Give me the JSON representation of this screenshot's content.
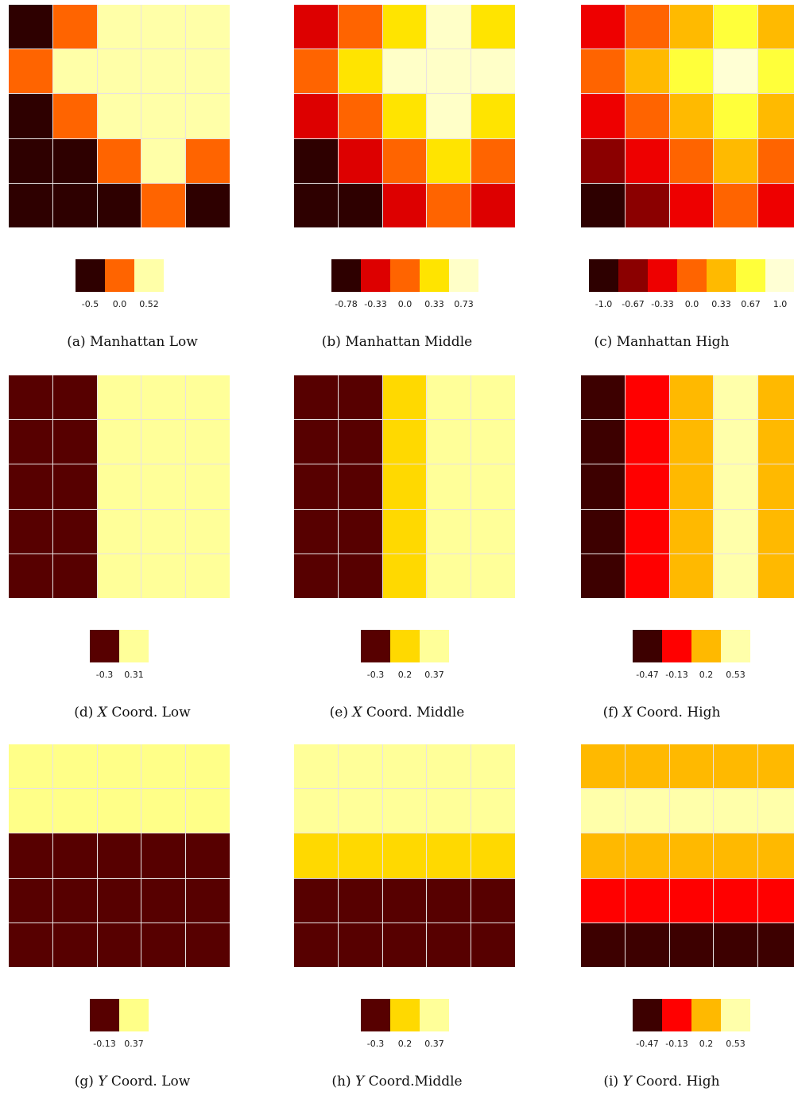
{
  "palette": {
    "dark_brown": "#2e0000",
    "maroon": "#570000",
    "dark_red": "#8b0000",
    "red": "#dd0000",
    "bright_red": "#ff0000",
    "orange": "#ff6400",
    "amber": "#ffba00",
    "gold": "#ffd900",
    "yellow": "#ffe400",
    "bright_yellow": "#ffff3a",
    "light_yellow": "#ffff99",
    "pale_yellow": "#ffffc8"
  },
  "chart_data": [
    {
      "type": "heatmap",
      "caption": {
        "prefix": "(a) ",
        "variable": "",
        "suffix": "Manhattan Low"
      },
      "legend": {
        "values": [
          "-0.5",
          "0.0",
          "0.52"
        ],
        "colors": [
          "#2e0000",
          "#ff6400",
          "#ffffa8"
        ]
      },
      "cells": [
        [
          0,
          1,
          2,
          2,
          2
        ],
        [
          1,
          2,
          2,
          2,
          2
        ],
        [
          0,
          1,
          2,
          2,
          2
        ],
        [
          0,
          0,
          1,
          2,
          1
        ],
        [
          0,
          0,
          0,
          1,
          0
        ]
      ]
    },
    {
      "type": "heatmap",
      "caption": {
        "prefix": "(b) ",
        "variable": "",
        "suffix": "Manhattan Middle"
      },
      "legend": {
        "values": [
          "-0.78",
          "-0.33",
          "0.0",
          "0.33",
          "0.73"
        ],
        "colors": [
          "#2e0000",
          "#dd0000",
          "#ff6400",
          "#ffe400",
          "#ffffc8"
        ]
      },
      "cells": [
        [
          1,
          2,
          3,
          4,
          3
        ],
        [
          2,
          3,
          4,
          4,
          4
        ],
        [
          1,
          2,
          3,
          4,
          3
        ],
        [
          0,
          1,
          2,
          3,
          2
        ],
        [
          0,
          0,
          1,
          2,
          1
        ]
      ]
    },
    {
      "type": "heatmap",
      "caption": {
        "prefix": "(c) ",
        "variable": "",
        "suffix": "Manhattan High"
      },
      "legend": {
        "values": [
          "-1.0",
          "-0.67",
          "-0.33",
          "0.0",
          "0.33",
          "0.67",
          "1.0"
        ],
        "colors": [
          "#2e0000",
          "#8b0000",
          "#ee0000",
          "#ff6400",
          "#ffba00",
          "#ffff3a",
          "#ffffd4"
        ]
      },
      "cells": [
        [
          2,
          3,
          4,
          5,
          4
        ],
        [
          3,
          4,
          5,
          6,
          5
        ],
        [
          2,
          3,
          4,
          5,
          4
        ],
        [
          1,
          2,
          3,
          4,
          3
        ],
        [
          0,
          1,
          2,
          3,
          2
        ]
      ]
    },
    {
      "type": "heatmap",
      "caption": {
        "prefix": "(d) ",
        "variable": "X",
        "suffix": " Coord. Low"
      },
      "legend": {
        "values": [
          "-0.3",
          "0.31"
        ],
        "colors": [
          "#570000",
          "#ffff99"
        ]
      },
      "cells": [
        [
          0,
          0,
          1,
          1,
          1
        ],
        [
          0,
          0,
          1,
          1,
          1
        ],
        [
          0,
          0,
          1,
          1,
          1
        ],
        [
          0,
          0,
          1,
          1,
          1
        ],
        [
          0,
          0,
          1,
          1,
          1
        ]
      ]
    },
    {
      "type": "heatmap",
      "caption": {
        "prefix": "(e) ",
        "variable": "X",
        "suffix": " Coord. Middle"
      },
      "legend": {
        "values": [
          "-0.3",
          "0.2",
          "0.37"
        ],
        "colors": [
          "#570000",
          "#ffd900",
          "#ffff99"
        ]
      },
      "cells": [
        [
          0,
          0,
          1,
          2,
          2
        ],
        [
          0,
          0,
          1,
          2,
          2
        ],
        [
          0,
          0,
          1,
          2,
          2
        ],
        [
          0,
          0,
          1,
          2,
          2
        ],
        [
          0,
          0,
          1,
          2,
          2
        ]
      ]
    },
    {
      "type": "heatmap",
      "caption": {
        "prefix": "(f) ",
        "variable": "X",
        "suffix": " Coord. High"
      },
      "legend": {
        "values": [
          "-0.47",
          "-0.13",
          "0.2",
          "0.53"
        ],
        "colors": [
          "#3d0000",
          "#ff0000",
          "#ffb900",
          "#ffffaa"
        ]
      },
      "cells": [
        [
          0,
          1,
          2,
          3,
          2
        ],
        [
          0,
          1,
          2,
          3,
          2
        ],
        [
          0,
          1,
          2,
          3,
          2
        ],
        [
          0,
          1,
          2,
          3,
          2
        ],
        [
          0,
          1,
          2,
          3,
          2
        ]
      ]
    },
    {
      "type": "heatmap",
      "caption": {
        "prefix": "(g) ",
        "variable": "Y",
        "suffix": " Coord. Low"
      },
      "legend": {
        "values": [
          "-0.13",
          "0.37"
        ],
        "colors": [
          "#570000",
          "#ffff88"
        ]
      },
      "cells": [
        [
          1,
          1,
          1,
          1,
          1
        ],
        [
          1,
          1,
          1,
          1,
          1
        ],
        [
          0,
          0,
          0,
          0,
          0
        ],
        [
          0,
          0,
          0,
          0,
          0
        ],
        [
          0,
          0,
          0,
          0,
          0
        ]
      ]
    },
    {
      "type": "heatmap",
      "caption": {
        "prefix": "(h) ",
        "variable": "Y",
        "suffix": " Coord.Middle"
      },
      "legend": {
        "values": [
          "-0.3",
          "0.2",
          "0.37"
        ],
        "colors": [
          "#570000",
          "#ffd900",
          "#ffff99"
        ]
      },
      "cells": [
        [
          2,
          2,
          2,
          2,
          2
        ],
        [
          2,
          2,
          2,
          2,
          2
        ],
        [
          1,
          1,
          1,
          1,
          1
        ],
        [
          0,
          0,
          0,
          0,
          0
        ],
        [
          0,
          0,
          0,
          0,
          0
        ]
      ]
    },
    {
      "type": "heatmap",
      "caption": {
        "prefix": "(i) ",
        "variable": "Y",
        "suffix": " Coord. High"
      },
      "legend": {
        "values": [
          "-0.47",
          "-0.13",
          "0.2",
          "0.53"
        ],
        "colors": [
          "#3d0000",
          "#ff0000",
          "#ffb900",
          "#ffffaa"
        ]
      },
      "cells": [
        [
          2,
          2,
          2,
          2,
          2
        ],
        [
          3,
          3,
          3,
          3,
          3
        ],
        [
          2,
          2,
          2,
          2,
          2
        ],
        [
          1,
          1,
          1,
          1,
          1
        ],
        [
          0,
          0,
          0,
          0,
          0
        ]
      ]
    }
  ]
}
